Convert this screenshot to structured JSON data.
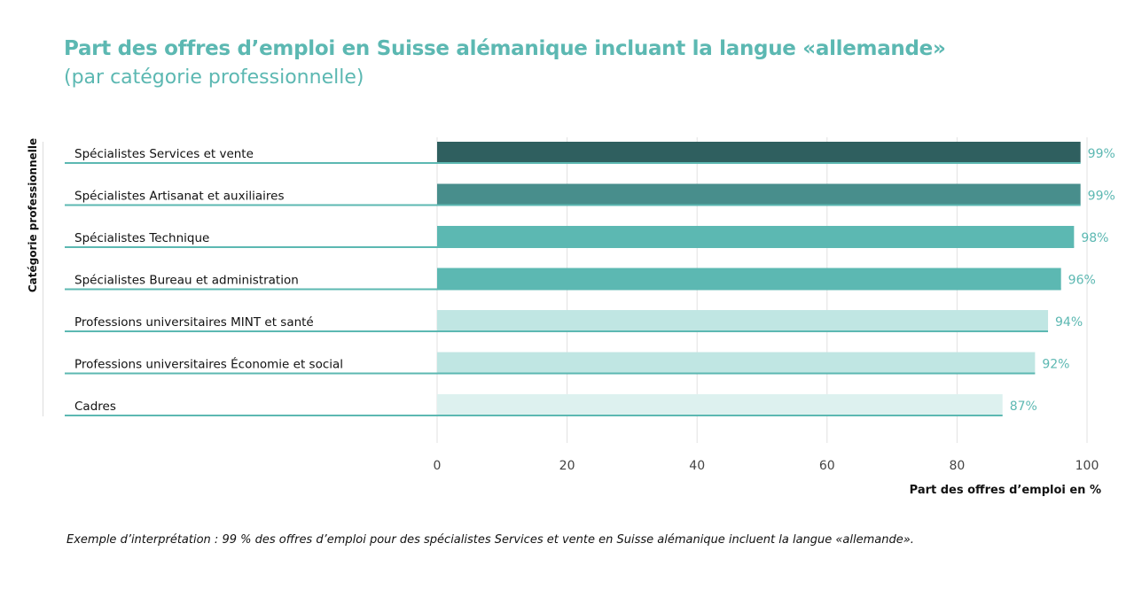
{
  "chart_data": {
    "type": "bar",
    "orientation": "horizontal",
    "title": "Part des offres d’emploi en Suisse alémanique incluant la langue «allemande»",
    "subtitle": "(par catégorie professionnelle)",
    "ylabel": "Catégorie professionnelle",
    "xlabel": "Part des offres d’emploi en %",
    "xlim": [
      0,
      100
    ],
    "xticks": [
      0,
      20,
      40,
      60,
      80,
      100
    ],
    "grid": "vertical",
    "categories": [
      "Spécialistes Services et vente",
      "Spécialistes Artisanat et auxiliaires",
      "Spécialistes Technique",
      "Spécialistes Bureau et administration",
      "Professions universitaires MINT et santé",
      "Professions universitaires Économie et social",
      "Cadres"
    ],
    "values": [
      99,
      99,
      98,
      96,
      94,
      92,
      87
    ],
    "value_labels": [
      "99%",
      "99%",
      "98%",
      "96%",
      "94%",
      "92%",
      "87%"
    ],
    "colors": [
      "#2f5f5f",
      "#488e8c",
      "#5cb8b2",
      "#5cb8b2",
      "#c0e6e3",
      "#c0e6e3",
      "#ddf1ef"
    ],
    "accent_color": "#5cb8b2",
    "note": "Exemple d’interprétation : 99 % des offres d’emploi pour des spécialistes Services et vente en Suisse alémanique incluent la langue «allemande»."
  }
}
